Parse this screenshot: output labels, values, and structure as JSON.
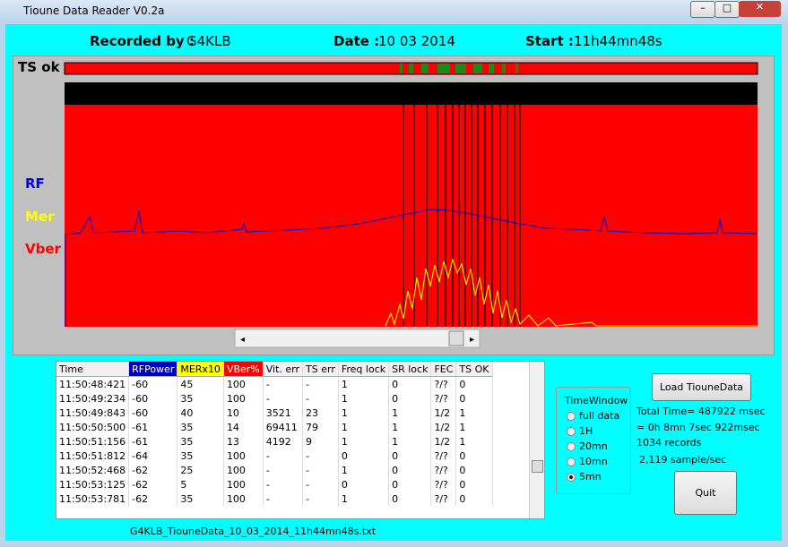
{
  "window": {
    "title": "Tioune Data Reader V0.2a"
  },
  "header": {
    "recorded_label": "Recorded by :",
    "recorded_value": "G4KLB",
    "date_label": "Date :",
    "date_value": "10 03 2014",
    "start_label": "Start :",
    "start_value": "11h44mn48s"
  },
  "plot": {
    "ts_label": "TS ok",
    "rf_label": "RF",
    "mer_label": "Mer",
    "vber_label": "Vber"
  },
  "table": {
    "columns": [
      "Time",
      "RFPower",
      "MERx10",
      "VBer%",
      "Vit. err",
      "TS err",
      "Freq lock",
      "SR lock",
      "FEC",
      "TS OK"
    ],
    "rows": [
      [
        "11:50:48:421",
        "-60",
        "45",
        "100",
        "-",
        "-",
        "1",
        "0",
        "?/?",
        "0"
      ],
      [
        "11:50:49:234",
        "-60",
        "35",
        "100",
        "-",
        "-",
        "1",
        "0",
        "?/?",
        "0"
      ],
      [
        "11:50:49:843",
        "-60",
        "40",
        "10",
        "3521",
        "23",
        "1",
        "1",
        "1/2",
        "1"
      ],
      [
        "11:50:50:500",
        "-61",
        "35",
        "14",
        "69411",
        "79",
        "1",
        "1",
        "1/2",
        "1"
      ],
      [
        "11:50:51:156",
        "-61",
        "35",
        "13",
        "4192",
        "9",
        "1",
        "1",
        "1/2",
        "1"
      ],
      [
        "11:50:51:812",
        "-64",
        "35",
        "100",
        "-",
        "-",
        "0",
        "0",
        "?/?",
        "0"
      ],
      [
        "11:50:52:468",
        "-62",
        "25",
        "100",
        "-",
        "-",
        "1",
        "0",
        "?/?",
        "0"
      ],
      [
        "11:50:53:125",
        "-62",
        "5",
        "100",
        "-",
        "-",
        "0",
        "0",
        "?/?",
        "0"
      ],
      [
        "11:50:53:781",
        "-62",
        "35",
        "100",
        "-",
        "-",
        "1",
        "0",
        "?/?",
        "0"
      ]
    ]
  },
  "time_window": {
    "title": "TimeWindow",
    "options": [
      "full data",
      "1H",
      "20mn",
      "10mn",
      "5mn"
    ]
  },
  "info": {
    "load_button": "Load TiouneData",
    "total_time": "Total Time= 487922 msec",
    "duration": "= 0h 8mn 7sec 922msec",
    "records": "1034 records",
    "rate": "2,119 sample/sec",
    "quit_button": "Quit"
  },
  "footer": {
    "filename": "G4KLB_TiouneData_10_03_2014_11h44mn48s.txt"
  }
}
